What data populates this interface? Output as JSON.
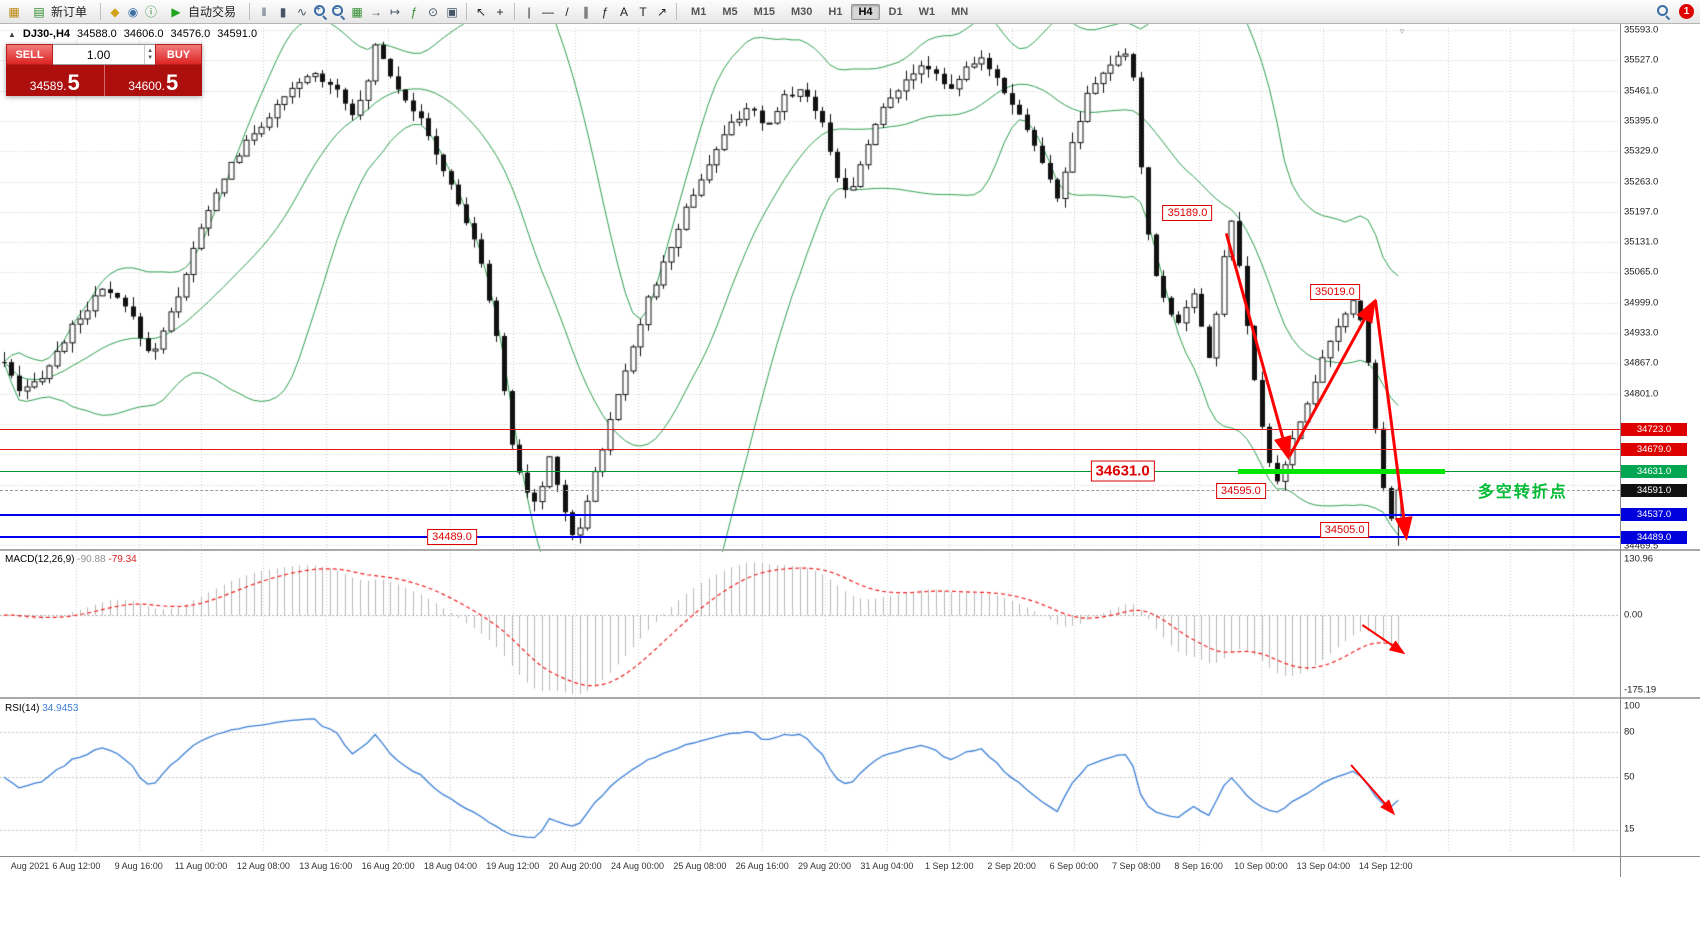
{
  "toolbar": {
    "new_order_label": "新订单",
    "new_order_icon_glyph": "▤",
    "autotrading_label": "自动交易",
    "autotrading_icon_glyph": "▶",
    "notification_count": "1",
    "timeframes": [
      "M1",
      "M5",
      "M15",
      "M30",
      "H1",
      "H4",
      "D1",
      "W1",
      "MN"
    ],
    "active_timeframe": "H4",
    "icon_groups": {
      "left": [
        {
          "name": "app-chart-icon",
          "glyph": "▦",
          "color": "#b8860b"
        }
      ],
      "market": [
        {
          "name": "marketwatch-icon",
          "glyph": "◆",
          "color": "#d4a017"
        },
        {
          "name": "navigator-icon",
          "glyph": "◉",
          "color": "#3a6ea5"
        },
        {
          "name": "data-window-icon",
          "glyph": "ⓘ",
          "color": "#2e8b2e"
        }
      ],
      "charts": [
        {
          "name": "bar-chart-icon",
          "glyph": "‖",
          "color": "#445566"
        },
        {
          "name": "candlestick-icon",
          "glyph": "▮",
          "color": "#445566"
        },
        {
          "name": "line-chart-icon",
          "glyph": "∿",
          "color": "#445566"
        },
        {
          "name": "zoom-in-icon",
          "glyph": "mag+",
          "color": "#3a6ea5"
        },
        {
          "name": "zoom-out-icon",
          "glyph": "mag-",
          "color": "#3a6ea5"
        },
        {
          "name": "tile-windows-icon",
          "glyph": "▦",
          "color": "#2e8b2e"
        },
        {
          "name": "auto-scroll-icon",
          "glyph": "→",
          "color": "#445566"
        },
        {
          "name": "chart-shift-icon",
          "glyph": "↦",
          "color": "#445566"
        },
        {
          "name": "indicators-icon",
          "glyph": "ƒ",
          "color": "#2e8b2e"
        },
        {
          "name": "periods-icon",
          "glyph": "⊙",
          "color": "#445566"
        },
        {
          "name": "templates-icon",
          "glyph": "▣",
          "color": "#445566"
        }
      ],
      "cursor": [
        {
          "name": "cursor-icon",
          "glyph": "↖",
          "color": "#222222"
        },
        {
          "name": "crosshair-icon",
          "glyph": "+",
          "color": "#222222"
        }
      ],
      "objects": [
        {
          "name": "vertical-line-icon",
          "glyph": "|",
          "color": "#222222"
        },
        {
          "name": "horizontal-line-icon",
          "glyph": "—",
          "color": "#222222"
        },
        {
          "name": "trendline-icon",
          "glyph": "/",
          "color": "#222222"
        },
        {
          "name": "channel-icon",
          "glyph": "∥",
          "color": "#222222"
        },
        {
          "name": "fibonacci-icon",
          "glyph": "ƒ",
          "color": "#222222"
        },
        {
          "name": "text-icon",
          "glyph": "A",
          "color": "#222222"
        },
        {
          "name": "label-icon",
          "glyph": "T",
          "color": "#222222"
        },
        {
          "name": "arrows-icon",
          "glyph": "↗",
          "color": "#222222"
        }
      ]
    }
  },
  "trade_panel": {
    "sell_label": "SELL",
    "buy_label": "BUY",
    "volume": "1.00",
    "spin_up": "▲",
    "spin_down": "▼",
    "sell_price": "34589.",
    "sell_price_big": "5",
    "buy_price": "34600.",
    "buy_price_big": "5"
  },
  "symbol_info": {
    "collapse_glyph": "▲",
    "symbol": "DJ30-,H4",
    "open": "34588.0",
    "high": "34606.0",
    "low": "34576.0",
    "close": "34591.0"
  },
  "price_axis": {
    "ticks": [
      "35593.0",
      "35527.0",
      "35461.0",
      "35395.0",
      "35329.0",
      "35263.0",
      "35197.0",
      "35131.0",
      "35065.0",
      "34999.0",
      "34933.0",
      "34867.0",
      "34801.0"
    ],
    "bottom_tick": "34469.5",
    "badges": [
      {
        "text": "34723.0",
        "price": 34723,
        "bg": "#dd0000"
      },
      {
        "text": "34679.0",
        "price": 34679,
        "bg": "#dd0000"
      },
      {
        "text": "34631.0",
        "price": 34631,
        "bg": "#00a651"
      },
      {
        "text": "34591.0",
        "price": 34591,
        "bg": "#111111"
      },
      {
        "text": "34537.0",
        "price": 34537,
        "bg": "#0000dd"
      },
      {
        "text": "34489.0",
        "price": 34489,
        "bg": "#0000dd"
      }
    ]
  },
  "levels": [
    {
      "price": 34723,
      "color": "#ee1111",
      "h": 1
    },
    {
      "price": 34679,
      "color": "#ee1111",
      "h": 1
    },
    {
      "price": 34631,
      "color": "#009933",
      "h": 1
    },
    {
      "price": 34537,
      "color": "#0000ee",
      "h": 2
    },
    {
      "price": 34489,
      "color": "#0000ee",
      "h": 2
    }
  ],
  "current_price_line": {
    "price": 34591,
    "color": "#999999"
  },
  "highlight_segment": {
    "price": 34631,
    "u1": 0.764,
    "u2": 0.892,
    "color": "#00e600",
    "h": 5
  },
  "annotations": {
    "price_labels": [
      {
        "text": "35189.0",
        "u": 0.733,
        "price": 35195
      },
      {
        "text": "35019.0",
        "u": 0.824,
        "price": 35022
      },
      {
        "text": "34631.0",
        "u": 0.693,
        "price": 34633,
        "big": true
      },
      {
        "text": "34595.0",
        "u": 0.766,
        "price": 34589
      },
      {
        "text": "34505.0",
        "u": 0.83,
        "price": 34505
      },
      {
        "text": "34489.0",
        "u": 0.279,
        "price": 34489
      }
    ],
    "turning_point": {
      "text": "多空转折点",
      "u": 0.94,
      "price": 34592,
      "color": "#00bb33"
    },
    "trend_arrows": [
      {
        "u1": 0.757,
        "p1": 35150,
        "u2": 0.795,
        "p2": 34665
      },
      {
        "u1": 0.796,
        "p1": 34665,
        "u2": 0.848,
        "p2": 35000
      },
      {
        "u1": 0.849,
        "p1": 35005,
        "u2": 0.868,
        "p2": 34490
      }
    ],
    "macd_arrow": {
      "u1": 0.841,
      "f1": 0.5,
      "u2": 0.866,
      "f2": 0.7
    },
    "rsi_arrow": {
      "u1": 0.834,
      "f1": 0.42,
      "u2": 0.86,
      "f2": 0.74
    }
  },
  "macd": {
    "name": "MACD(12,26,9)",
    "value_main": "-90.88",
    "value_signal": "-79.34",
    "scale": [
      "130.96",
      "0.00",
      "-175.19"
    ],
    "range_max": 130.96,
    "range_min": -175.19
  },
  "rsi": {
    "name": "RSI(14)",
    "value": "34.9453",
    "scale": [
      "100",
      "80",
      "50",
      "15"
    ],
    "levels": [
      80,
      50,
      15
    ]
  },
  "time_axis": [
    "Aug 2021",
    "6 Aug 12:00",
    "9 Aug 16:00",
    "11 Aug 00:00",
    "12 Aug 08:00",
    "13 Aug 16:00",
    "16 Aug 20:00",
    "18 Aug 04:00",
    "19 Aug 12:00",
    "20 Aug 20:00",
    "24 Aug 00:00",
    "25 Aug 08:00",
    "26 Aug 16:00",
    "29 Aug 20:00",
    "31 Aug 04:00",
    "1 Sep 12:00",
    "2 Sep 20:00",
    "6 Sep 00:00",
    "7 Sep 08:00",
    "8 Sep 16:00",
    "10 Sep 00:00",
    "13 Sep 04:00",
    "14 Sep 12:00"
  ],
  "colors": {
    "bull_candle": "#ffffff",
    "bear_candle": "#111111",
    "candle_outline": "#111111",
    "bollinger": "#2e9e50",
    "macd_histogram": "#b8b8b8",
    "macd_signal": "#ee2222",
    "rsi_line": "#3b7fd6",
    "trend_arrow": "#ff0000",
    "grid": "#9a9a9a"
  },
  "chart_data": {
    "type": "candlestick",
    "symbol": "DJ30-",
    "timeframe": "H4",
    "last_ohlc": {
      "open": 34588.0,
      "high": 34606.0,
      "low": 34576.0,
      "close": 34591.0
    },
    "visible_price_range": [
      34469.5,
      35593.0
    ],
    "grid_price_step": 66,
    "bar_count": 185,
    "last_bar_low": 34470,
    "indicators": [
      "Bollinger Bands (green)",
      "MACD(12,26,9)",
      "RSI(14)"
    ],
    "key_levels": {
      "resistance_red": [
        34723,
        34679
      ],
      "pivot_green": 34631,
      "support_blue": [
        34537,
        34489
      ],
      "swing_high": 35189,
      "lower_high": 35019,
      "swing_low": 34595,
      "breakdown_target": 34505
    },
    "price_path": [
      [
        0,
        34870
      ],
      [
        0.012,
        34795
      ],
      [
        0.03,
        34850
      ],
      [
        0.052,
        34960
      ],
      [
        0.072,
        35030
      ],
      [
        0.09,
        34980
      ],
      [
        0.105,
        34880
      ],
      [
        0.122,
        34990
      ],
      [
        0.14,
        35150
      ],
      [
        0.16,
        35290
      ],
      [
        0.18,
        35370
      ],
      [
        0.2,
        35440
      ],
      [
        0.22,
        35500
      ],
      [
        0.238,
        35470
      ],
      [
        0.252,
        35405
      ],
      [
        0.26,
        35470
      ],
      [
        0.267,
        35570
      ],
      [
        0.278,
        35490
      ],
      [
        0.298,
        35400
      ],
      [
        0.318,
        35270
      ],
      [
        0.338,
        35130
      ],
      [
        0.352,
        34960
      ],
      [
        0.362,
        34720
      ],
      [
        0.372,
        34600
      ],
      [
        0.382,
        34555
      ],
      [
        0.392,
        34670
      ],
      [
        0.402,
        34545
      ],
      [
        0.41,
        34475
      ],
      [
        0.42,
        34590
      ],
      [
        0.432,
        34710
      ],
      [
        0.446,
        34860
      ],
      [
        0.46,
        34990
      ],
      [
        0.474,
        35090
      ],
      [
        0.49,
        35210
      ],
      [
        0.505,
        35300
      ],
      [
        0.52,
        35380
      ],
      [
        0.534,
        35430
      ],
      [
        0.546,
        35370
      ],
      [
        0.56,
        35450
      ],
      [
        0.574,
        35465
      ],
      [
        0.588,
        35380
      ],
      [
        0.598,
        35275
      ],
      [
        0.606,
        35225
      ],
      [
        0.618,
        35340
      ],
      [
        0.632,
        35430
      ],
      [
        0.648,
        35495
      ],
      [
        0.663,
        35515
      ],
      [
        0.678,
        35465
      ],
      [
        0.69,
        35505
      ],
      [
        0.703,
        35530
      ],
      [
        0.718,
        35460
      ],
      [
        0.732,
        35390
      ],
      [
        0.745,
        35300
      ],
      [
        0.755,
        35225
      ],
      [
        0.766,
        35340
      ],
      [
        0.778,
        35455
      ],
      [
        0.792,
        35515
      ],
      [
        0.803,
        35545
      ],
      [
        0.81,
        35490
      ],
      [
        0.817,
        35230
      ],
      [
        0.824,
        35070
      ],
      [
        0.833,
        35000
      ],
      [
        0.843,
        34950
      ],
      [
        0.853,
        35030
      ],
      [
        0.86,
        34930
      ],
      [
        0.866,
        34865
      ],
      [
        0.871,
        35010
      ],
      [
        0.876,
        35120
      ],
      [
        0.881,
        35185
      ],
      [
        0.889,
        35000
      ],
      [
        0.897,
        34820
      ],
      [
        0.905,
        34680
      ],
      [
        0.912,
        34600
      ],
      [
        0.92,
        34665
      ],
      [
        0.93,
        34745
      ],
      [
        0.94,
        34830
      ],
      [
        0.95,
        34905
      ],
      [
        0.96,
        34965
      ],
      [
        0.97,
        35015
      ],
      [
        0.978,
        34880
      ],
      [
        0.986,
        34660
      ],
      [
        0.993,
        34520
      ],
      [
        1,
        34591
      ]
    ]
  }
}
